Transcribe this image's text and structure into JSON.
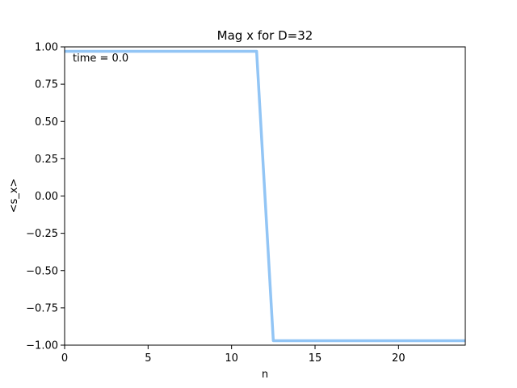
{
  "chart_data": {
    "type": "line",
    "title": "Mag x for D=32",
    "xlabel": "n",
    "ylabel": "<s_x>",
    "xlim": [
      0,
      24
    ],
    "ylim": [
      -1.0,
      1.0
    ],
    "xticks": [
      0,
      5,
      10,
      15,
      20
    ],
    "xtick_labels": [
      "0",
      "5",
      "10",
      "15",
      "20"
    ],
    "yticks": [
      -1.0,
      -0.75,
      -0.5,
      -0.25,
      0.0,
      0.25,
      0.5,
      0.75,
      1.0
    ],
    "ytick_labels": [
      "−1.00",
      "−0.75",
      "−0.50",
      "−0.25",
      "0.00",
      "0.25",
      "0.50",
      "0.75",
      "1.00"
    ],
    "grid": false,
    "annotation": "time = 0.0",
    "series": [
      {
        "color": "#92c5f5",
        "x": [
          0,
          1,
          2,
          3,
          4,
          5,
          6,
          7,
          8,
          9,
          10,
          11,
          11.5,
          12.5,
          13,
          14,
          15,
          16,
          17,
          18,
          19,
          20,
          21,
          22,
          23,
          24
        ],
        "y": [
          0.97,
          0.97,
          0.97,
          0.97,
          0.97,
          0.97,
          0.97,
          0.97,
          0.97,
          0.97,
          0.97,
          0.97,
          0.97,
          -0.97,
          -0.97,
          -0.97,
          -0.97,
          -0.97,
          -0.97,
          -0.97,
          -0.97,
          -0.97,
          -0.97,
          -0.97,
          -0.97,
          -0.97
        ]
      }
    ]
  }
}
